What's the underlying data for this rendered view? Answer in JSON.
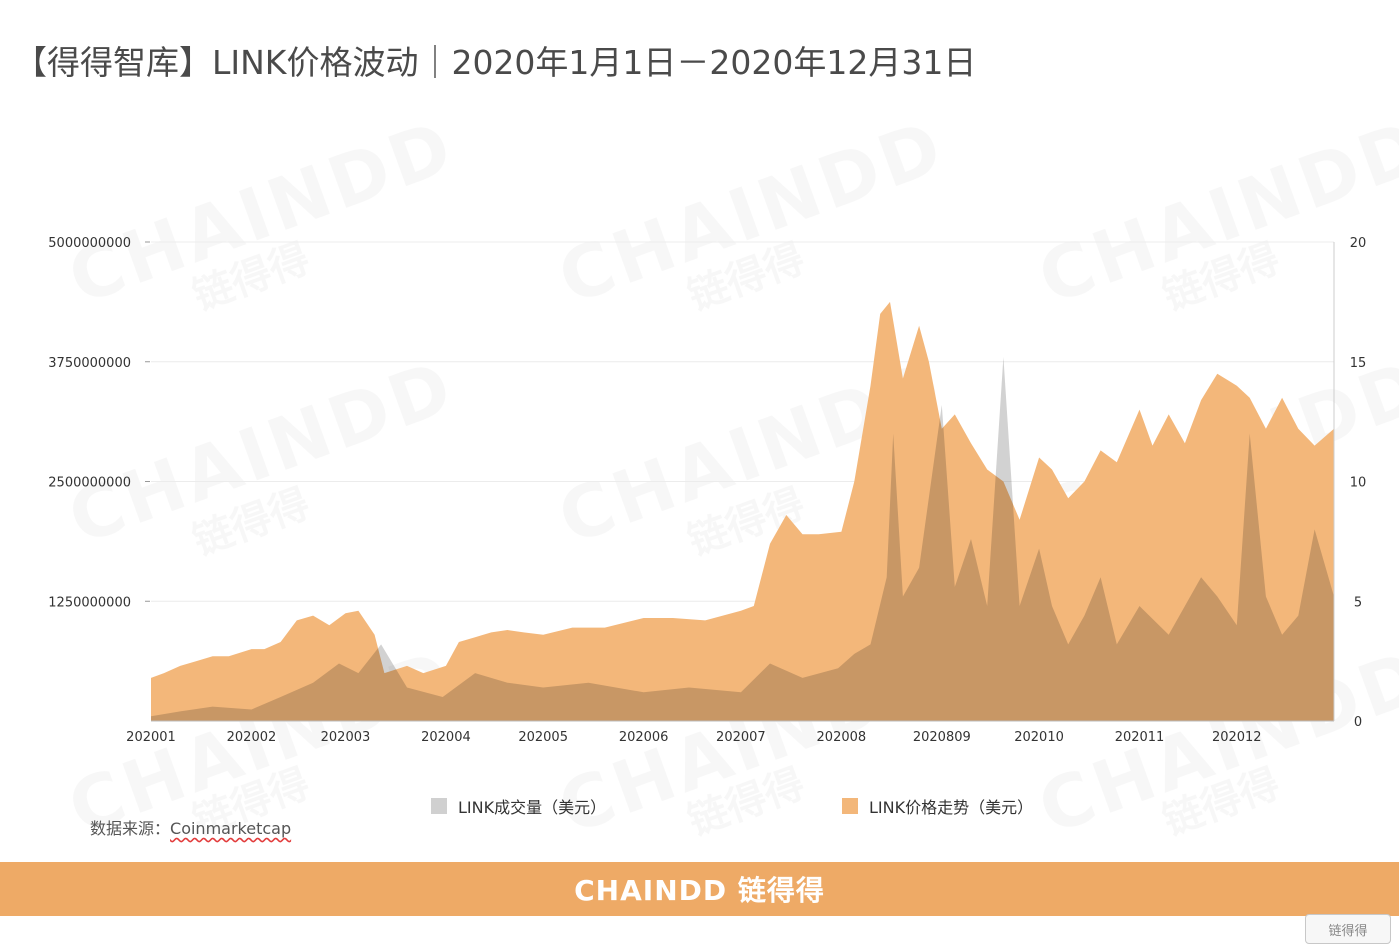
{
  "title": "【得得智库】LINK价格波动｜2020年1月1日－2020年12月31日",
  "watermark": {
    "text": "CHAINDD",
    "sub": "链得得"
  },
  "source": {
    "label": "数据来源：",
    "value": "Coinmarketcap"
  },
  "footer": {
    "brand": "CHAINDD 链得得"
  },
  "corner_logo": "链得得",
  "colors": {
    "volume": "#d0d0d0",
    "price": "#f3b77a",
    "overlap": "#cfb399",
    "footer": "#eeaa66"
  },
  "chart_data": {
    "type": "area",
    "title": "",
    "x_ticks": [
      "202001",
      "202002",
      "202003",
      "202004",
      "202005",
      "202006",
      "202007",
      "202008",
      "2020809",
      "202010",
      "202011",
      "202012"
    ],
    "y_left": {
      "ticks": [
        "5000000000",
        "3750000000",
        "2500000000",
        "1250000000"
      ],
      "range": [
        0,
        5000000000
      ]
    },
    "y_right": {
      "ticks": [
        "20",
        "15",
        "10",
        "5",
        "0"
      ],
      "range": [
        0,
        20
      ]
    },
    "legend": {
      "placement": "bottom",
      "items": [
        "LINK成交量（美元）",
        "LINK价格走势（美元）"
      ]
    },
    "grid": true,
    "series": [
      {
        "name": "LINK成交量（美元）",
        "axis": "left",
        "x": [
          "2020-01-01",
          "2020-01-10",
          "2020-01-20",
          "2020-02-01",
          "2020-02-10",
          "2020-02-20",
          "2020-02-28",
          "2020-03-05",
          "2020-03-12",
          "2020-03-20",
          "2020-03-31",
          "2020-04-10",
          "2020-04-20",
          "2020-05-01",
          "2020-05-15",
          "2020-06-01",
          "2020-06-15",
          "2020-07-01",
          "2020-07-10",
          "2020-07-20",
          "2020-07-31",
          "2020-08-05",
          "2020-08-10",
          "2020-08-15",
          "2020-08-17",
          "2020-08-20",
          "2020-08-25",
          "2020-09-01",
          "2020-09-05",
          "2020-09-10",
          "2020-09-15",
          "2020-09-20",
          "2020-09-25",
          "2020-10-01",
          "2020-10-05",
          "2020-10-10",
          "2020-10-15",
          "2020-10-20",
          "2020-10-25",
          "2020-11-01",
          "2020-11-10",
          "2020-11-20",
          "2020-11-25",
          "2020-12-01",
          "2020-12-05",
          "2020-12-10",
          "2020-12-15",
          "2020-12-20",
          "2020-12-25",
          "2020-12-31"
        ],
        "values": [
          50000000,
          100000000,
          150000000,
          120000000,
          250000000,
          400000000,
          600000000,
          500000000,
          800000000,
          350000000,
          250000000,
          500000000,
          400000000,
          350000000,
          400000000,
          300000000,
          350000000,
          300000000,
          600000000,
          450000000,
          550000000,
          700000000,
          800000000,
          1500000000,
          3000000000,
          1300000000,
          1600000000,
          3300000000,
          1400000000,
          1900000000,
          1200000000,
          3800000000,
          1200000000,
          1800000000,
          1200000000,
          800000000,
          1100000000,
          1500000000,
          800000000,
          1200000000,
          900000000,
          1500000000,
          1300000000,
          1000000000,
          3000000000,
          1300000000,
          900000000,
          1100000000,
          2000000000,
          1300000000
        ]
      },
      {
        "name": "LINK价格走势（美元）",
        "axis": "right",
        "x": [
          "2020-01-01",
          "2020-01-05",
          "2020-01-10",
          "2020-01-15",
          "2020-01-20",
          "2020-01-25",
          "2020-02-01",
          "2020-02-05",
          "2020-02-10",
          "2020-02-15",
          "2020-02-20",
          "2020-02-25",
          "2020-03-01",
          "2020-03-05",
          "2020-03-08",
          "2020-03-10",
          "2020-03-13",
          "2020-03-20",
          "2020-03-25",
          "2020-04-01",
          "2020-04-05",
          "2020-04-10",
          "2020-04-15",
          "2020-04-20",
          "2020-04-25",
          "2020-05-01",
          "2020-05-10",
          "2020-05-20",
          "2020-06-01",
          "2020-06-10",
          "2020-06-20",
          "2020-07-01",
          "2020-07-05",
          "2020-07-10",
          "2020-07-15",
          "2020-07-20",
          "2020-07-25",
          "2020-08-01",
          "2020-08-05",
          "2020-08-10",
          "2020-08-13",
          "2020-08-16",
          "2020-08-20",
          "2020-08-25",
          "2020-08-28",
          "2020-09-01",
          "2020-09-05",
          "2020-09-10",
          "2020-09-15",
          "2020-09-20",
          "2020-09-25",
          "2020-10-01",
          "2020-10-05",
          "2020-10-10",
          "2020-10-15",
          "2020-10-20",
          "2020-10-25",
          "2020-11-01",
          "2020-11-05",
          "2020-11-10",
          "2020-11-15",
          "2020-11-20",
          "2020-11-25",
          "2020-12-01",
          "2020-12-05",
          "2020-12-10",
          "2020-12-15",
          "2020-12-20",
          "2020-12-25",
          "2020-12-31"
        ],
        "values": [
          1.8,
          2.0,
          2.3,
          2.5,
          2.7,
          2.7,
          3.0,
          3.0,
          3.3,
          4.2,
          4.4,
          4.0,
          4.5,
          4.6,
          4.0,
          3.6,
          2.0,
          2.3,
          2.0,
          2.3,
          3.3,
          3.5,
          3.7,
          3.8,
          3.7,
          3.6,
          3.9,
          3.9,
          4.3,
          4.3,
          4.2,
          4.6,
          4.8,
          7.4,
          8.6,
          7.8,
          7.8,
          7.9,
          10.0,
          14.0,
          17.0,
          17.5,
          14.3,
          16.5,
          15.0,
          12.2,
          12.8,
          11.6,
          10.5,
          10.0,
          8.4,
          11.0,
          10.5,
          9.3,
          10.0,
          11.3,
          10.8,
          13.0,
          11.5,
          12.8,
          11.6,
          13.4,
          14.5,
          14.0,
          13.5,
          12.2,
          13.5,
          12.2,
          11.5,
          12.2
        ]
      }
    ]
  }
}
